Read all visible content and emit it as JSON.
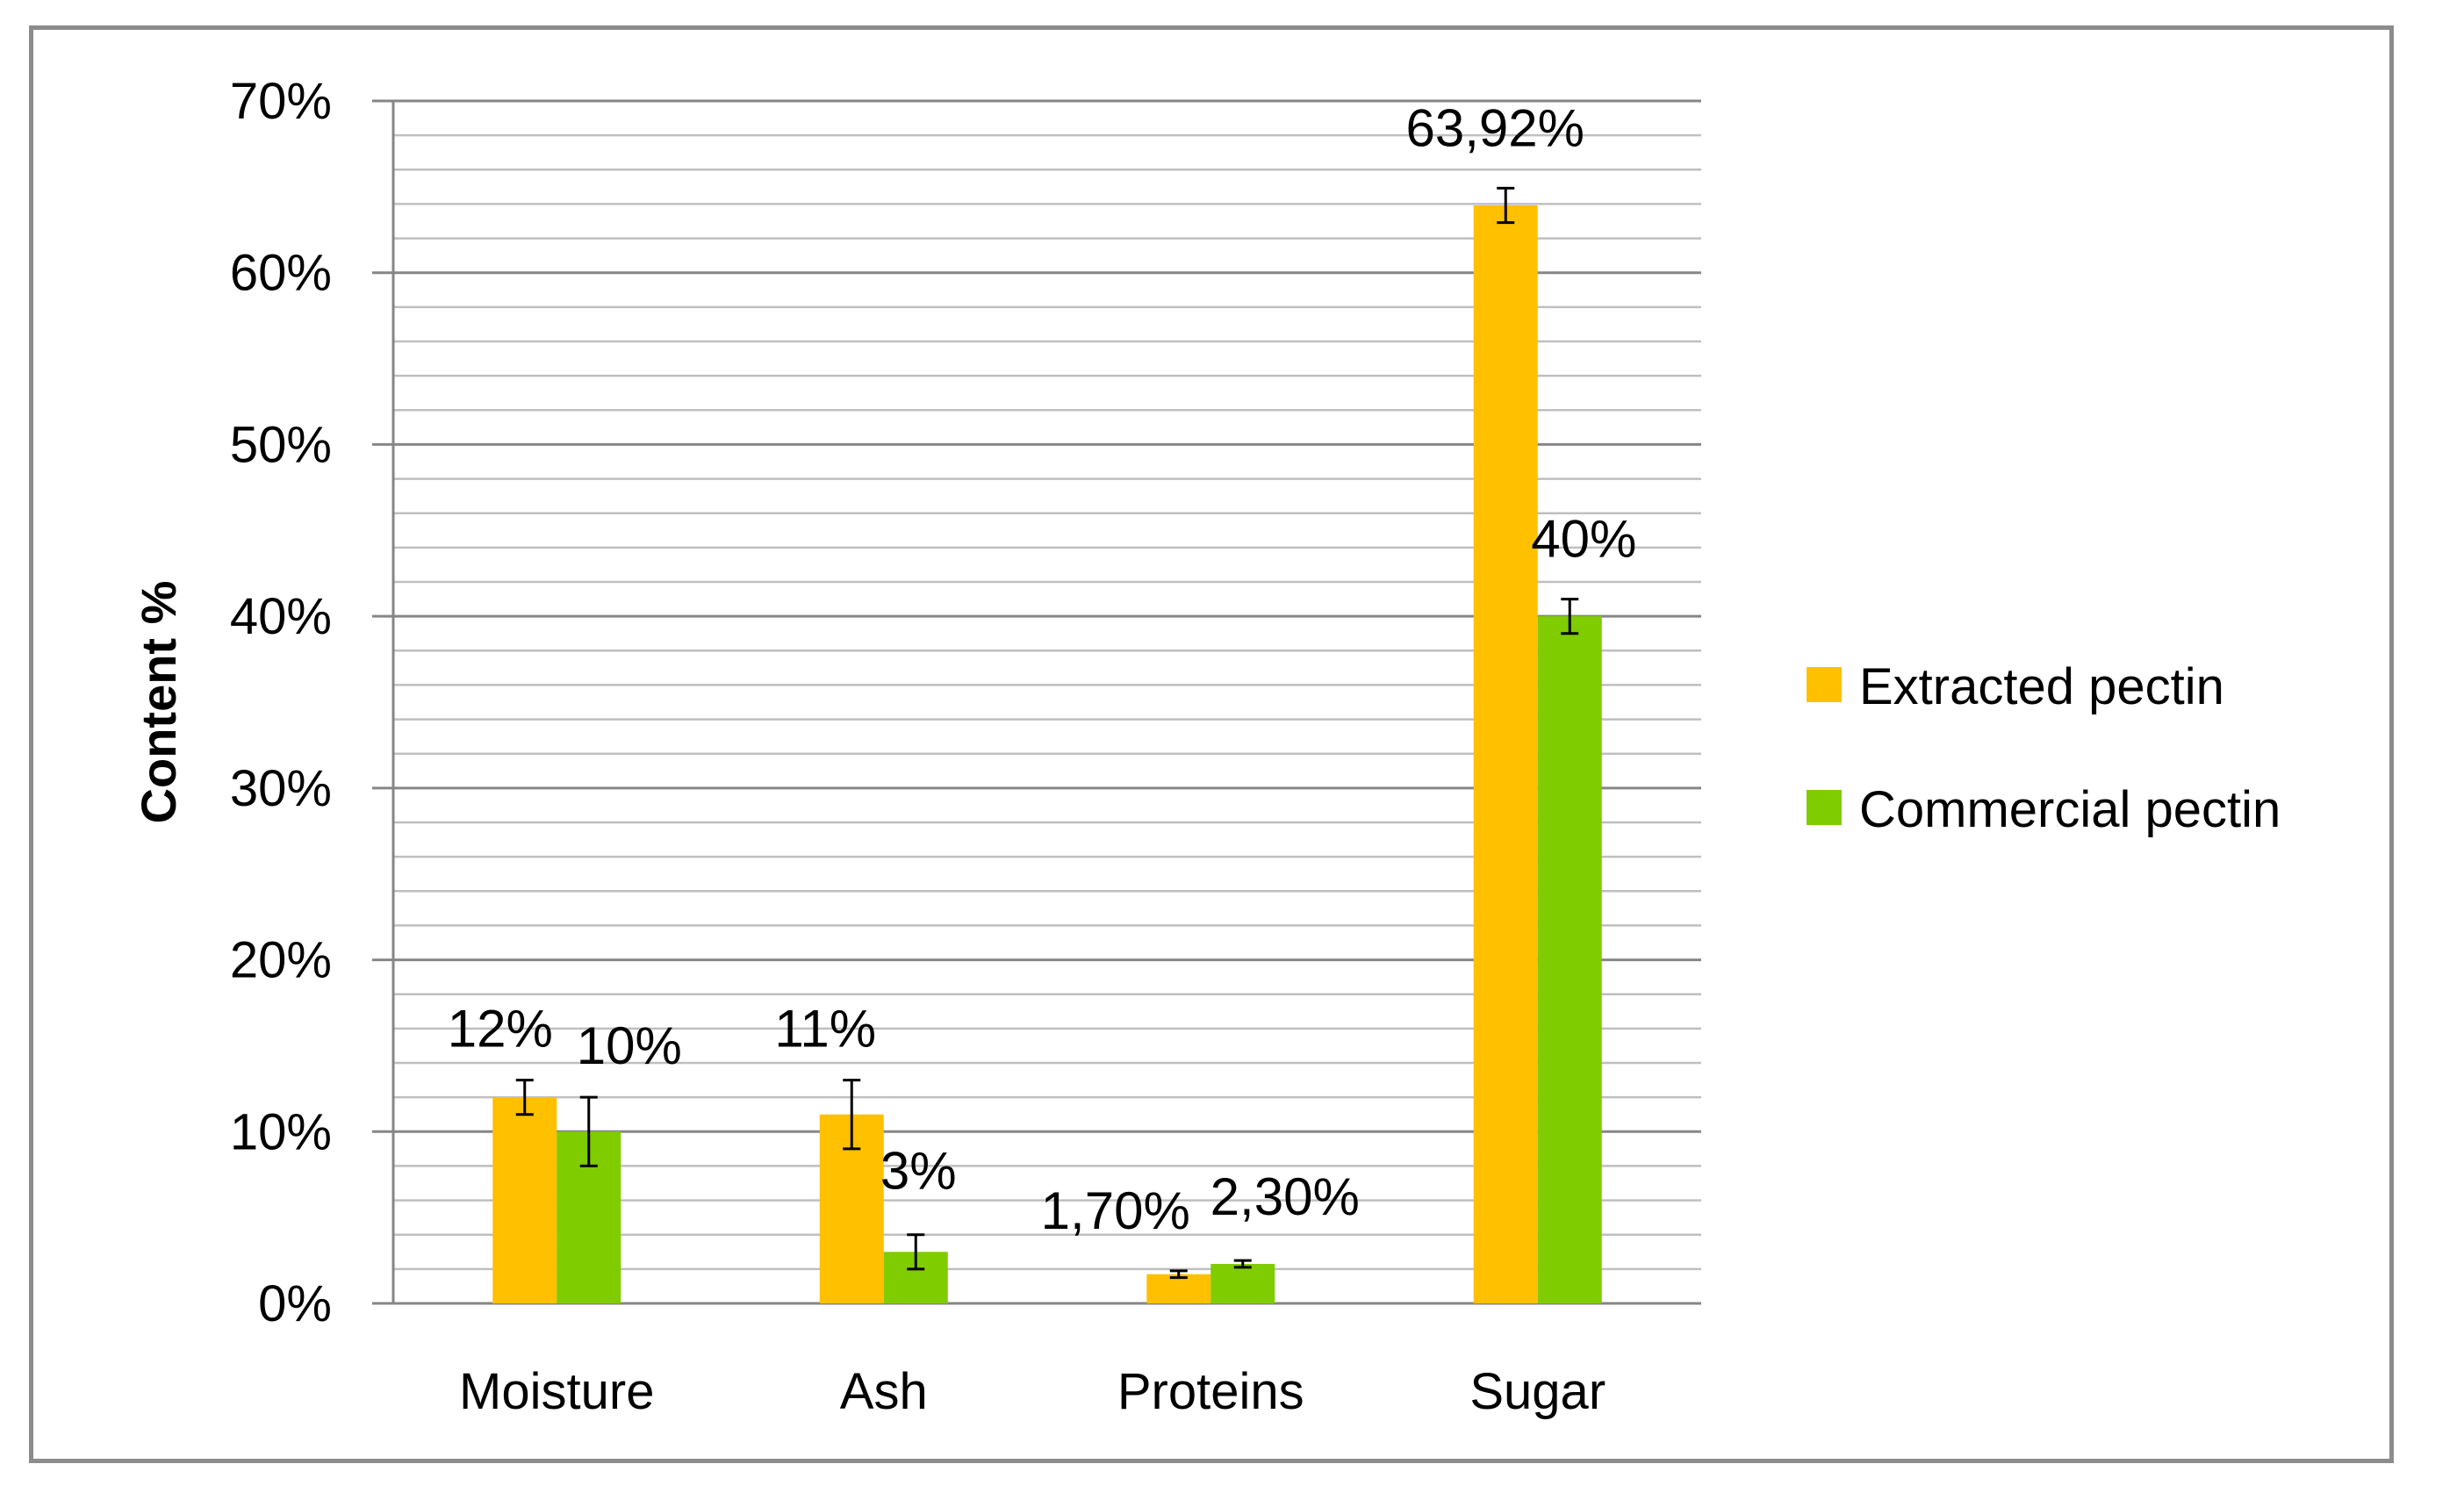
{
  "chart_data": {
    "type": "bar",
    "categories": [
      "Moisture",
      "Ash",
      "Proteins",
      "Sugar"
    ],
    "series": [
      {
        "name": "Extracted pectin",
        "color": "#ffc000",
        "values": [
          12,
          11,
          1.7,
          63.92
        ],
        "errors": [
          1,
          2,
          0.2,
          1
        ],
        "labels": [
          "12%",
          "11%",
          "1,70%",
          "63,92%"
        ]
      },
      {
        "name": "Commercial pectin",
        "color": "#7fcc00",
        "values": [
          10,
          3,
          2.3,
          40
        ],
        "errors": [
          2,
          1,
          0.2,
          1
        ],
        "labels": [
          "10%",
          "3%",
          "2,30%",
          "40%"
        ]
      }
    ],
    "ylabel": "Content %",
    "ylim": [
      0,
      70
    ],
    "yticks": [
      0,
      10,
      20,
      30,
      40,
      50,
      60,
      70
    ],
    "ytick_labels": [
      "0%",
      "10%",
      "20%",
      "30%",
      "40%",
      "50%",
      "60%",
      "70%"
    ],
    "minor_grid_step": 2,
    "grid": true,
    "legend_position": "right",
    "error_bars": true
  }
}
